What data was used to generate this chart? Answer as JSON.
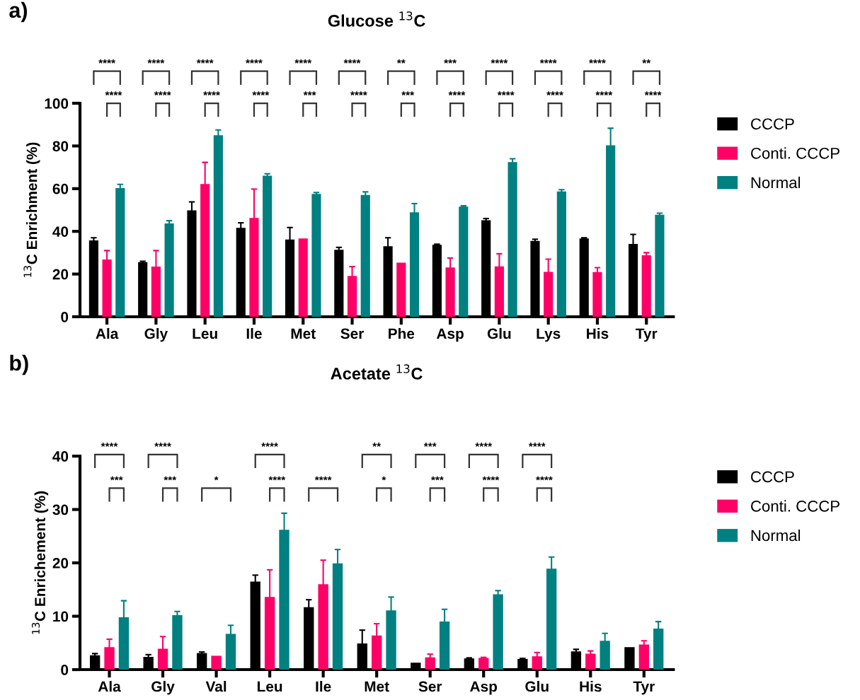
{
  "chart_data": [
    {
      "type": "bar",
      "title": "Glucose $^{13}$C",
      "ylabel": "$^{13}$C Enrichment (%)",
      "categories": [
        "Ala",
        "Gly",
        "Leu",
        "Ile",
        "Met",
        "Ser",
        "Phe",
        "Asp",
        "Glu",
        "Lys",
        "His",
        "Tyr"
      ],
      "series": [
        {
          "name": "CCCP",
          "color": "#000000",
          "values": [
            35.8,
            25.6,
            49.8,
            41.6,
            36.2,
            31.4,
            33.0,
            33.7,
            45.2,
            35.5,
            36.7,
            34.1
          ],
          "errors": [
            1.2,
            0.4,
            4.0,
            2.4,
            5.6,
            1.1,
            4.0,
            0.3,
            0.8,
            0.8,
            0.3,
            4.5
          ]
        },
        {
          "name": "Conti. CCCP",
          "color": "#ff0066",
          "values": [
            26.8,
            23.5,
            62.2,
            46.3,
            36.7,
            19.1,
            25.3,
            23.1,
            23.6,
            21.0,
            20.9,
            28.8
          ],
          "errors": [
            4.2,
            7.5,
            10.1,
            13.5,
            null,
            4.4,
            null,
            4.4,
            5.9,
            6.0,
            2.1,
            1.2
          ]
        },
        {
          "name": "Normal",
          "color": "#008080",
          "values": [
            60.3,
            43.7,
            85.0,
            66.1,
            57.5,
            57.0,
            48.9,
            51.6,
            72.4,
            58.7,
            80.3,
            47.8
          ],
          "errors": [
            1.7,
            1.3,
            2.5,
            0.9,
            0.7,
            1.5,
            4.1,
            0.4,
            1.6,
            0.8,
            8.0,
            0.7
          ]
        }
      ],
      "ylim": [
        0,
        100
      ],
      "yticks": [
        0,
        20,
        40,
        60,
        80,
        100
      ],
      "grid": false,
      "legend": "right",
      "annotations": [
        "a)",
        "****",
        "****",
        "****",
        "****",
        "****",
        "****",
        "****",
        "****",
        "****",
        "***",
        "****",
        "****",
        "**",
        "***",
        "***",
        "****",
        "****",
        "****",
        "****",
        "****",
        "****",
        "****",
        "**",
        "****"
      ]
    },
    {
      "type": "bar",
      "title": "Acetate $^{13}$C",
      "ylabel": "$^{13}$C Enrichement (%)",
      "categories": [
        "Ala",
        "Gly",
        "Val",
        "Leu",
        "Ile",
        "Met",
        "Ser",
        "Asp",
        "Glu",
        "His",
        "Tyr"
      ],
      "series": [
        {
          "name": "CCCP",
          "color": "#000000",
          "values": [
            2.7,
            2.4,
            3.1,
            16.5,
            11.7,
            4.9,
            1.3,
            2.1,
            2.0,
            3.4,
            4.2
          ],
          "errors": [
            0.3,
            0.4,
            0.2,
            1.2,
            1.4,
            2.5,
            null,
            0.1,
            0.1,
            0.4,
            null
          ]
        },
        {
          "name": "Conti. CCCP",
          "color": "#ff0066",
          "values": [
            4.2,
            3.9,
            2.6,
            13.6,
            16.0,
            6.4,
            2.3,
            2.2,
            2.5,
            3.0,
            4.7
          ],
          "errors": [
            1.5,
            2.3,
            null,
            5.1,
            4.5,
            2.2,
            0.6,
            0.1,
            0.7,
            0.5,
            0.7
          ]
        },
        {
          "name": "Normal",
          "color": "#008080",
          "values": [
            9.8,
            10.2,
            6.7,
            26.2,
            19.9,
            11.1,
            9.0,
            14.1,
            18.9,
            5.4,
            7.7
          ],
          "errors": [
            3.1,
            0.7,
            1.6,
            3.1,
            2.6,
            2.5,
            2.3,
            0.7,
            2.2,
            1.4,
            1.3
          ]
        }
      ],
      "ylim": [
        0,
        40
      ],
      "yticks": [
        0,
        10,
        20,
        30,
        40
      ],
      "grid": false,
      "legend": "right",
      "annotations": [
        "b)",
        "****",
        "***",
        "****",
        "***",
        "*",
        "****",
        "****",
        "****",
        "**",
        "*",
        "***",
        "***",
        "****",
        "****",
        "****",
        "****"
      ]
    }
  ]
}
